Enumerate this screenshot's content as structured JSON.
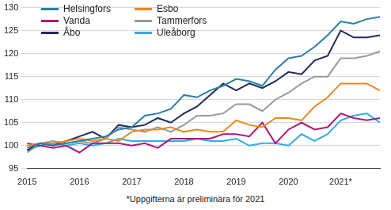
{
  "chart_data": {
    "type": "line",
    "categories": [
      "2015",
      null,
      null,
      null,
      "2016",
      null,
      null,
      null,
      "2017",
      null,
      null,
      null,
      "2018",
      null,
      null,
      null,
      "2019",
      null,
      null,
      null,
      "2020",
      null,
      null,
      null,
      "2021*",
      null,
      null,
      null
    ],
    "series": [
      {
        "name": "Helsingfors",
        "color": "#2a7fa6",
        "values": [
          99.5,
          100.5,
          100,
          100.5,
          101,
          101.5,
          102,
          103.5,
          104,
          106.5,
          107,
          108,
          111,
          110.5,
          112,
          113,
          114.5,
          114,
          113,
          116.5,
          119,
          119.5,
          121.5,
          124,
          127,
          126.5,
          127.5,
          128
        ]
      },
      {
        "name": "Esbo",
        "color": "#e8891e",
        "values": [
          100,
          100.5,
          100.5,
          101,
          101.5,
          101,
          101.5,
          101,
          103,
          103.5,
          103.5,
          104,
          103,
          103.5,
          103,
          103,
          105.5,
          104.5,
          104,
          106,
          106,
          105.5,
          108.5,
          110.5,
          113.5,
          113.5,
          113.5,
          112
        ]
      },
      {
        "name": "Vanda",
        "color": "#b0177a",
        "values": [
          100.5,
          100,
          99.5,
          100,
          98.5,
          100.5,
          100.5,
          100.5,
          100,
          100.5,
          99.5,
          101.5,
          101.5,
          101.5,
          101.5,
          102.5,
          102.5,
          102,
          105,
          100.5,
          103.5,
          105,
          103.5,
          104,
          107,
          106,
          105.5,
          106
        ]
      },
      {
        "name": "Tammerfors",
        "color": "#9a9a9a",
        "values": [
          98.5,
          100.5,
          101,
          100.5,
          101,
          100.5,
          101.5,
          104,
          103.5,
          103,
          104,
          103,
          104.5,
          106.5,
          106.5,
          107,
          109,
          109,
          107.5,
          110,
          111.5,
          113.5,
          115,
          115,
          119,
          119,
          119.5,
          120.5
        ]
      },
      {
        "name": "Åbo",
        "color": "#1f2a5c",
        "values": [
          99,
          100.5,
          100,
          101,
          102,
          103,
          101.5,
          104.5,
          104,
          104.5,
          106,
          105,
          107,
          108.5,
          111,
          113.5,
          112,
          113.5,
          112.5,
          114,
          116,
          115.5,
          118.5,
          119.5,
          125,
          123.5,
          123.5,
          124
        ]
      },
      {
        "name": "Uleåborg",
        "color": "#2eaee6",
        "values": [
          99,
          100,
          100.5,
          100,
          100.5,
          100,
          100.5,
          101.5,
          101,
          101,
          101,
          101,
          101,
          101.5,
          101,
          101,
          101.5,
          100,
          100.5,
          100.5,
          100,
          102.5,
          101,
          102.5,
          105.5,
          106.5,
          107,
          105
        ]
      }
    ],
    "ylim": [
      95,
      130
    ],
    "yticks": [
      95,
      100,
      105,
      110,
      115,
      120,
      125,
      130
    ],
    "grid": true,
    "legend": "top-left",
    "annotations": [
      "*Uppgifterna är preliminära för 2021"
    ]
  }
}
